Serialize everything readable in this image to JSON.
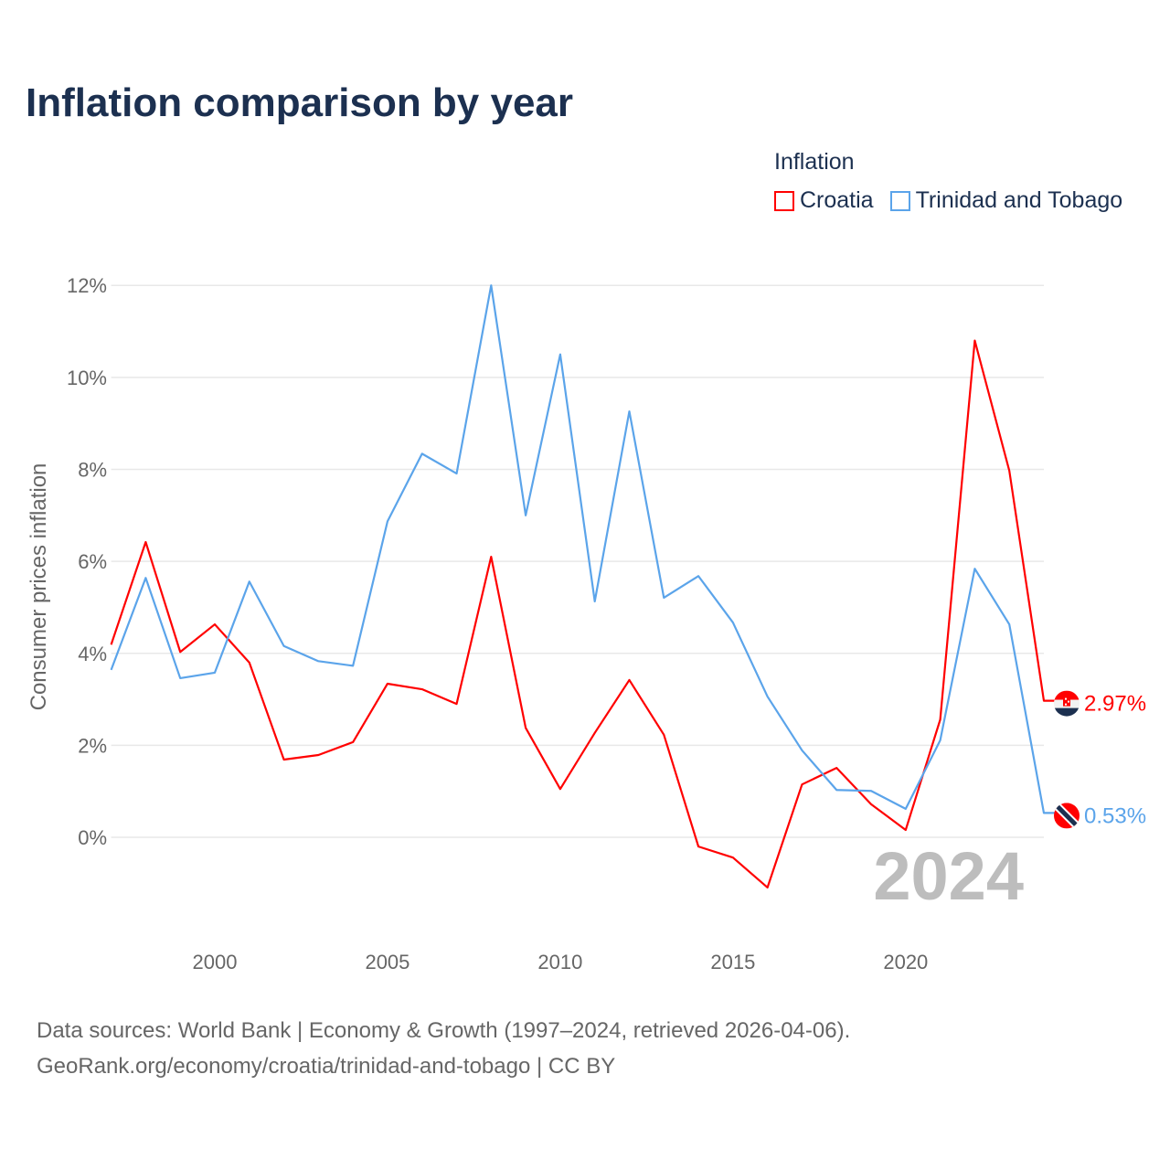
{
  "title": "Inflation comparison by year",
  "legend": {
    "title": "Inflation",
    "items": [
      {
        "label": "Croatia",
        "color": "#ff0000"
      },
      {
        "label": "Trinidad and Tobago",
        "color": "#5ba4ea"
      }
    ]
  },
  "footer": {
    "line1": "Data sources: World Bank | Economy & Growth (1997–2024, retrieved 2026-04-06).",
    "line2": "GeoRank.org/economy/croatia/trinidad-and-tobago | CC BY"
  },
  "chart_data": {
    "type": "line",
    "title": "Inflation comparison by year",
    "xlabel": "",
    "ylabel": "Consumer prices inflation",
    "year_watermark": "2024",
    "x": [
      1997,
      1998,
      1999,
      2000,
      2001,
      2002,
      2003,
      2004,
      2005,
      2006,
      2007,
      2008,
      2009,
      2010,
      2011,
      2012,
      2013,
      2014,
      2015,
      2016,
      2017,
      2018,
      2019,
      2020,
      2021,
      2022,
      2023,
      2024
    ],
    "xlim": [
      1997,
      2024
    ],
    "ylim": [
      -2,
      12.64
    ],
    "xticks": [
      2000,
      2005,
      2010,
      2015,
      2020
    ],
    "yticks": [
      0,
      2,
      4,
      6,
      8,
      10,
      12
    ],
    "ytick_labels": [
      "0%",
      "2%",
      "4%",
      "6%",
      "8%",
      "10%",
      "12%"
    ],
    "grid": true,
    "legend_position": "top-right",
    "series": [
      {
        "name": "Croatia",
        "color": "#ff0000",
        "end_label": "2.97%",
        "values": [
          4.19,
          6.42,
          4.03,
          4.63,
          3.8,
          1.69,
          1.79,
          2.07,
          3.34,
          3.22,
          2.9,
          6.1,
          2.38,
          1.05,
          2.27,
          3.42,
          2.23,
          -0.2,
          -0.44,
          -1.09,
          1.15,
          1.51,
          0.72,
          0.16,
          2.56,
          10.8,
          7.97,
          2.97
        ]
      },
      {
        "name": "Trinidad and Tobago",
        "color": "#5ba4ea",
        "end_label": "0.53%",
        "values": [
          3.64,
          5.64,
          3.46,
          3.58,
          5.56,
          4.16,
          3.83,
          3.73,
          6.87,
          8.34,
          7.91,
          12.0,
          7.0,
          10.5,
          5.13,
          9.26,
          5.21,
          5.68,
          4.67,
          3.06,
          1.89,
          1.03,
          1.01,
          0.62,
          2.11,
          5.84,
          4.63,
          0.53
        ]
      }
    ]
  }
}
